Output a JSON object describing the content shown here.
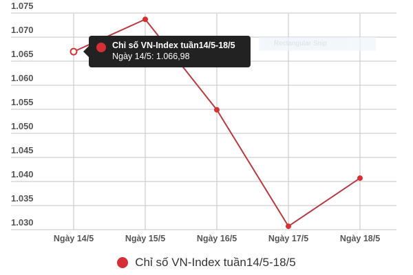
{
  "chart_data": {
    "type": "line",
    "title": "",
    "xlabel": "",
    "ylabel": "",
    "categories": [
      "Ngày 14/5",
      "Ngày 15/5",
      "Ngày 16/5",
      "Ngày 17/5",
      "Ngày 18/5"
    ],
    "series": [
      {
        "name": "Chỉ số VN-Index tuần14/5-18/5",
        "color": "#d62f35",
        "values": [
          1066.98,
          1073.7,
          1054.9,
          1030.7,
          1040.7
        ]
      }
    ],
    "y_ticks": [
      "1.030",
      "1.035",
      "1.040",
      "1.045",
      "1.050",
      "1.055",
      "1.060",
      "1.065",
      "1.070",
      "1.075"
    ],
    "ylim": [
      1030,
      1075
    ],
    "grid": true,
    "legend_position": "bottom"
  },
  "tooltip": {
    "title": "Chỉ số VN-Index tuần14/5-18/5",
    "value": "Ngày 14/5: 1.066,98"
  },
  "ghost_overlay": {
    "label": "Rectangular Snip"
  },
  "legend": {
    "label": "Chỉ số VN-Index tuần14/5-18/5"
  },
  "colors": {
    "series": "#d62f35",
    "grid": "#cfcfcf",
    "tooltip_bg": "#222222"
  }
}
